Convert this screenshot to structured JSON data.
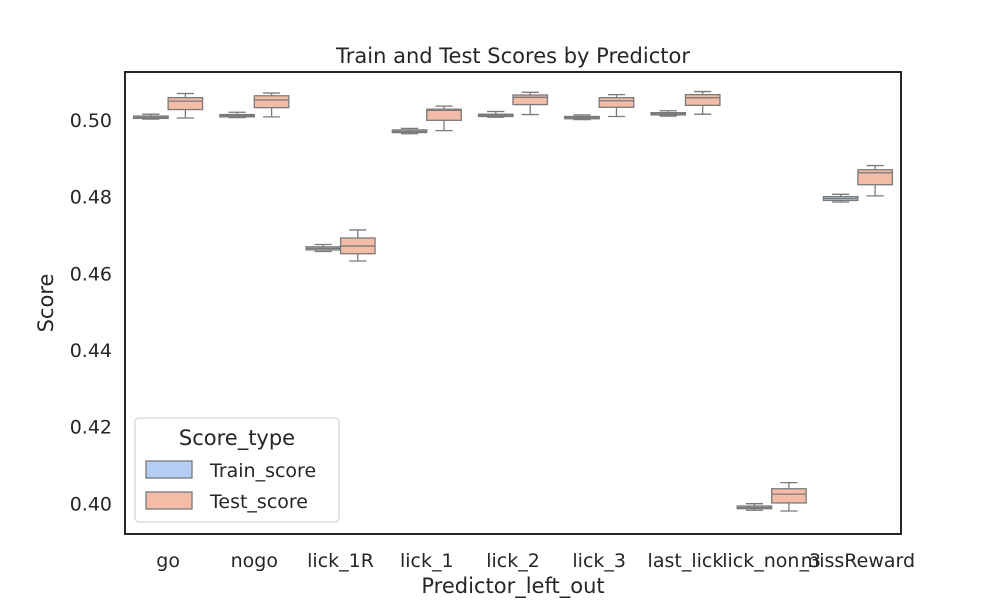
{
  "chart_data": {
    "type": "box",
    "title": "Train and Test Scores by Predictor",
    "xlabel": "Predictor_left_out",
    "ylabel": "Score",
    "ylim": [
      0.392,
      0.5125
    ],
    "yticks": [
      "0.40",
      "0.42",
      "0.44",
      "0.46",
      "0.48",
      "0.50"
    ],
    "ytick_values": [
      0.4,
      0.42,
      0.44,
      0.46,
      0.48,
      0.5
    ],
    "grid": false,
    "legend": {
      "title": "Score_type",
      "placement": "lower-left"
    },
    "categories": [
      "go",
      "nogo",
      "lick_1R",
      "lick_1",
      "lick_2",
      "lick_3",
      "last_lick",
      "lick_non_3",
      "missReward"
    ],
    "colors": {
      "Train_score": "#b6cdf5",
      "Test_score": "#f4bba6",
      "edge": "#7a7a7a"
    },
    "series": [
      {
        "name": "Train_score",
        "boxes": [
          {
            "whislo": 0.5002,
            "q1": 0.5004,
            "med": 0.5007,
            "q3": 0.501,
            "whishi": 0.5015
          },
          {
            "whislo": 0.5006,
            "q1": 0.5008,
            "med": 0.5011,
            "q3": 0.5014,
            "whishi": 0.502
          },
          {
            "whislo": 0.4657,
            "q1": 0.4661,
            "med": 0.4665,
            "q3": 0.4669,
            "whishi": 0.4675
          },
          {
            "whislo": 0.4964,
            "q1": 0.4967,
            "med": 0.497,
            "q3": 0.4974,
            "whishi": 0.4978
          },
          {
            "whislo": 0.5007,
            "q1": 0.5009,
            "med": 0.5012,
            "q3": 0.5015,
            "whishi": 0.5022
          },
          {
            "whislo": 0.5001,
            "q1": 0.5003,
            "med": 0.5006,
            "q3": 0.5009,
            "whishi": 0.5013
          },
          {
            "whislo": 0.501,
            "q1": 0.5013,
            "med": 0.5016,
            "q3": 0.5019,
            "whishi": 0.5024
          },
          {
            "whislo": 0.3982,
            "q1": 0.3986,
            "med": 0.3989,
            "q3": 0.3993,
            "whishi": 0.3999
          },
          {
            "whislo": 0.4786,
            "q1": 0.479,
            "med": 0.4795,
            "q3": 0.48,
            "whishi": 0.4806
          }
        ]
      },
      {
        "name": "Test_score",
        "boxes": [
          {
            "whislo": 0.5005,
            "q1": 0.5027,
            "med": 0.5049,
            "q3": 0.5058,
            "whishi": 0.5069
          },
          {
            "whislo": 0.5008,
            "q1": 0.5032,
            "med": 0.5052,
            "q3": 0.5063,
            "whishi": 0.507
          },
          {
            "whislo": 0.4632,
            "q1": 0.4651,
            "med": 0.4671,
            "q3": 0.4692,
            "whishi": 0.4713
          },
          {
            "whislo": 0.4972,
            "q1": 0.4999,
            "med": 0.5025,
            "q3": 0.5028,
            "whishi": 0.5036
          },
          {
            "whislo": 0.5014,
            "q1": 0.504,
            "med": 0.5059,
            "q3": 0.5065,
            "whishi": 0.5072
          },
          {
            "whislo": 0.5009,
            "q1": 0.5033,
            "med": 0.505,
            "q3": 0.5058,
            "whishi": 0.5066
          },
          {
            "whislo": 0.5015,
            "q1": 0.5038,
            "med": 0.5058,
            "q3": 0.5066,
            "whishi": 0.5074
          },
          {
            "whislo": 0.398,
            "q1": 0.4001,
            "med": 0.4024,
            "q3": 0.4038,
            "whishi": 0.4054
          },
          {
            "whislo": 0.4802,
            "q1": 0.4831,
            "med": 0.4862,
            "q3": 0.487,
            "whishi": 0.4881
          }
        ]
      }
    ]
  }
}
